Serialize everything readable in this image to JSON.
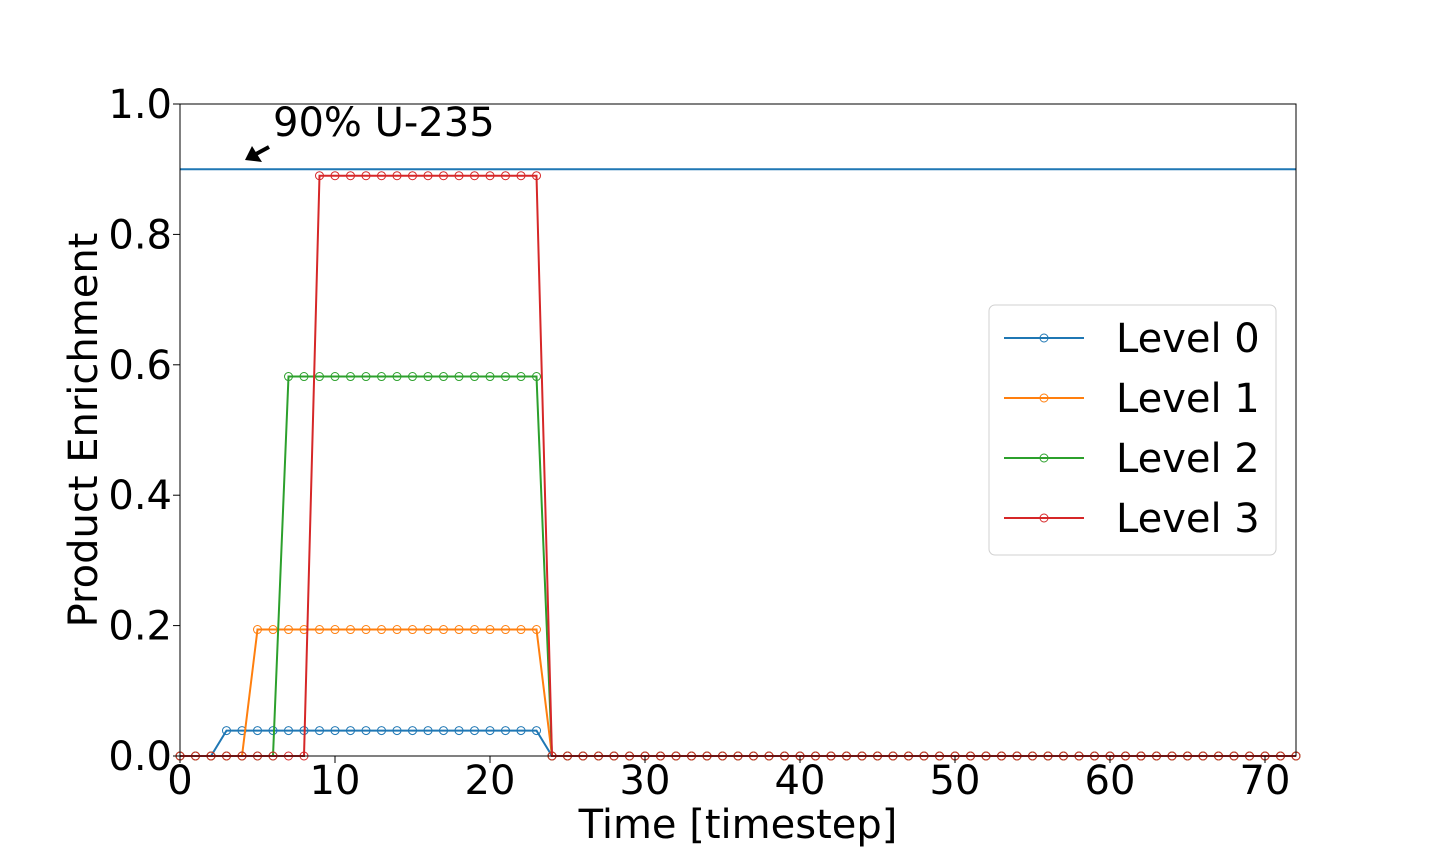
{
  "chart_data": {
    "type": "line",
    "title": "",
    "xlabel": "Time [timestep]",
    "ylabel": "Product Enrichment",
    "xlim": [
      0,
      72
    ],
    "ylim": [
      0.0,
      1.0
    ],
    "xticks": [
      0,
      10,
      20,
      30,
      40,
      50,
      60,
      70
    ],
    "xtick_labels": [
      "0",
      "10",
      "20",
      "30",
      "40",
      "50",
      "60",
      "70"
    ],
    "yticks": [
      0.0,
      0.2,
      0.4,
      0.6,
      0.8,
      1.0
    ],
    "ytick_labels": [
      "0.0",
      "0.2",
      "0.4",
      "0.6",
      "0.8",
      "1.0"
    ],
    "grid": false,
    "legend_position": "center-right",
    "x": [
      0,
      1,
      2,
      3,
      4,
      5,
      6,
      7,
      8,
      9,
      10,
      11,
      12,
      13,
      14,
      15,
      16,
      17,
      18,
      19,
      20,
      21,
      22,
      23,
      24,
      25,
      26,
      27,
      28,
      29,
      30,
      31,
      32,
      33,
      34,
      35,
      36,
      37,
      38,
      39,
      40,
      41,
      42,
      43,
      44,
      45,
      46,
      47,
      48,
      49,
      50,
      51,
      52,
      53,
      54,
      55,
      56,
      57,
      58,
      59,
      60,
      61,
      62,
      63,
      64,
      65,
      66,
      67,
      68,
      69,
      70,
      71,
      72
    ],
    "series": [
      {
        "name": "Level 0",
        "color": "#1f77b4",
        "segments": [
          {
            "from": 0,
            "to": 2,
            "value": 0.0
          },
          {
            "from": 3,
            "to": 23,
            "value": 0.039
          },
          {
            "from": 24,
            "to": 72,
            "value": 0.0
          }
        ]
      },
      {
        "name": "Level 1",
        "color": "#ff7f0e",
        "segments": [
          {
            "from": 0,
            "to": 4,
            "value": 0.0
          },
          {
            "from": 5,
            "to": 23,
            "value": 0.194
          },
          {
            "from": 24,
            "to": 72,
            "value": 0.0
          }
        ]
      },
      {
        "name": "Level 2",
        "color": "#2ca02c",
        "segments": [
          {
            "from": 0,
            "to": 6,
            "value": 0.0
          },
          {
            "from": 7,
            "to": 23,
            "value": 0.582
          },
          {
            "from": 24,
            "to": 72,
            "value": 0.0
          }
        ]
      },
      {
        "name": "Level 3",
        "color": "#d62728",
        "segments": [
          {
            "from": 0,
            "to": 8,
            "value": 0.0
          },
          {
            "from": 9,
            "to": 23,
            "value": 0.89
          },
          {
            "from": 24,
            "to": 72,
            "value": 0.0
          }
        ]
      }
    ],
    "reference_line": {
      "y": 0.9,
      "color": "#1f77b4"
    },
    "annotation": {
      "text": "90% U-235",
      "arrow_target": [
        4,
        0.9
      ]
    }
  }
}
